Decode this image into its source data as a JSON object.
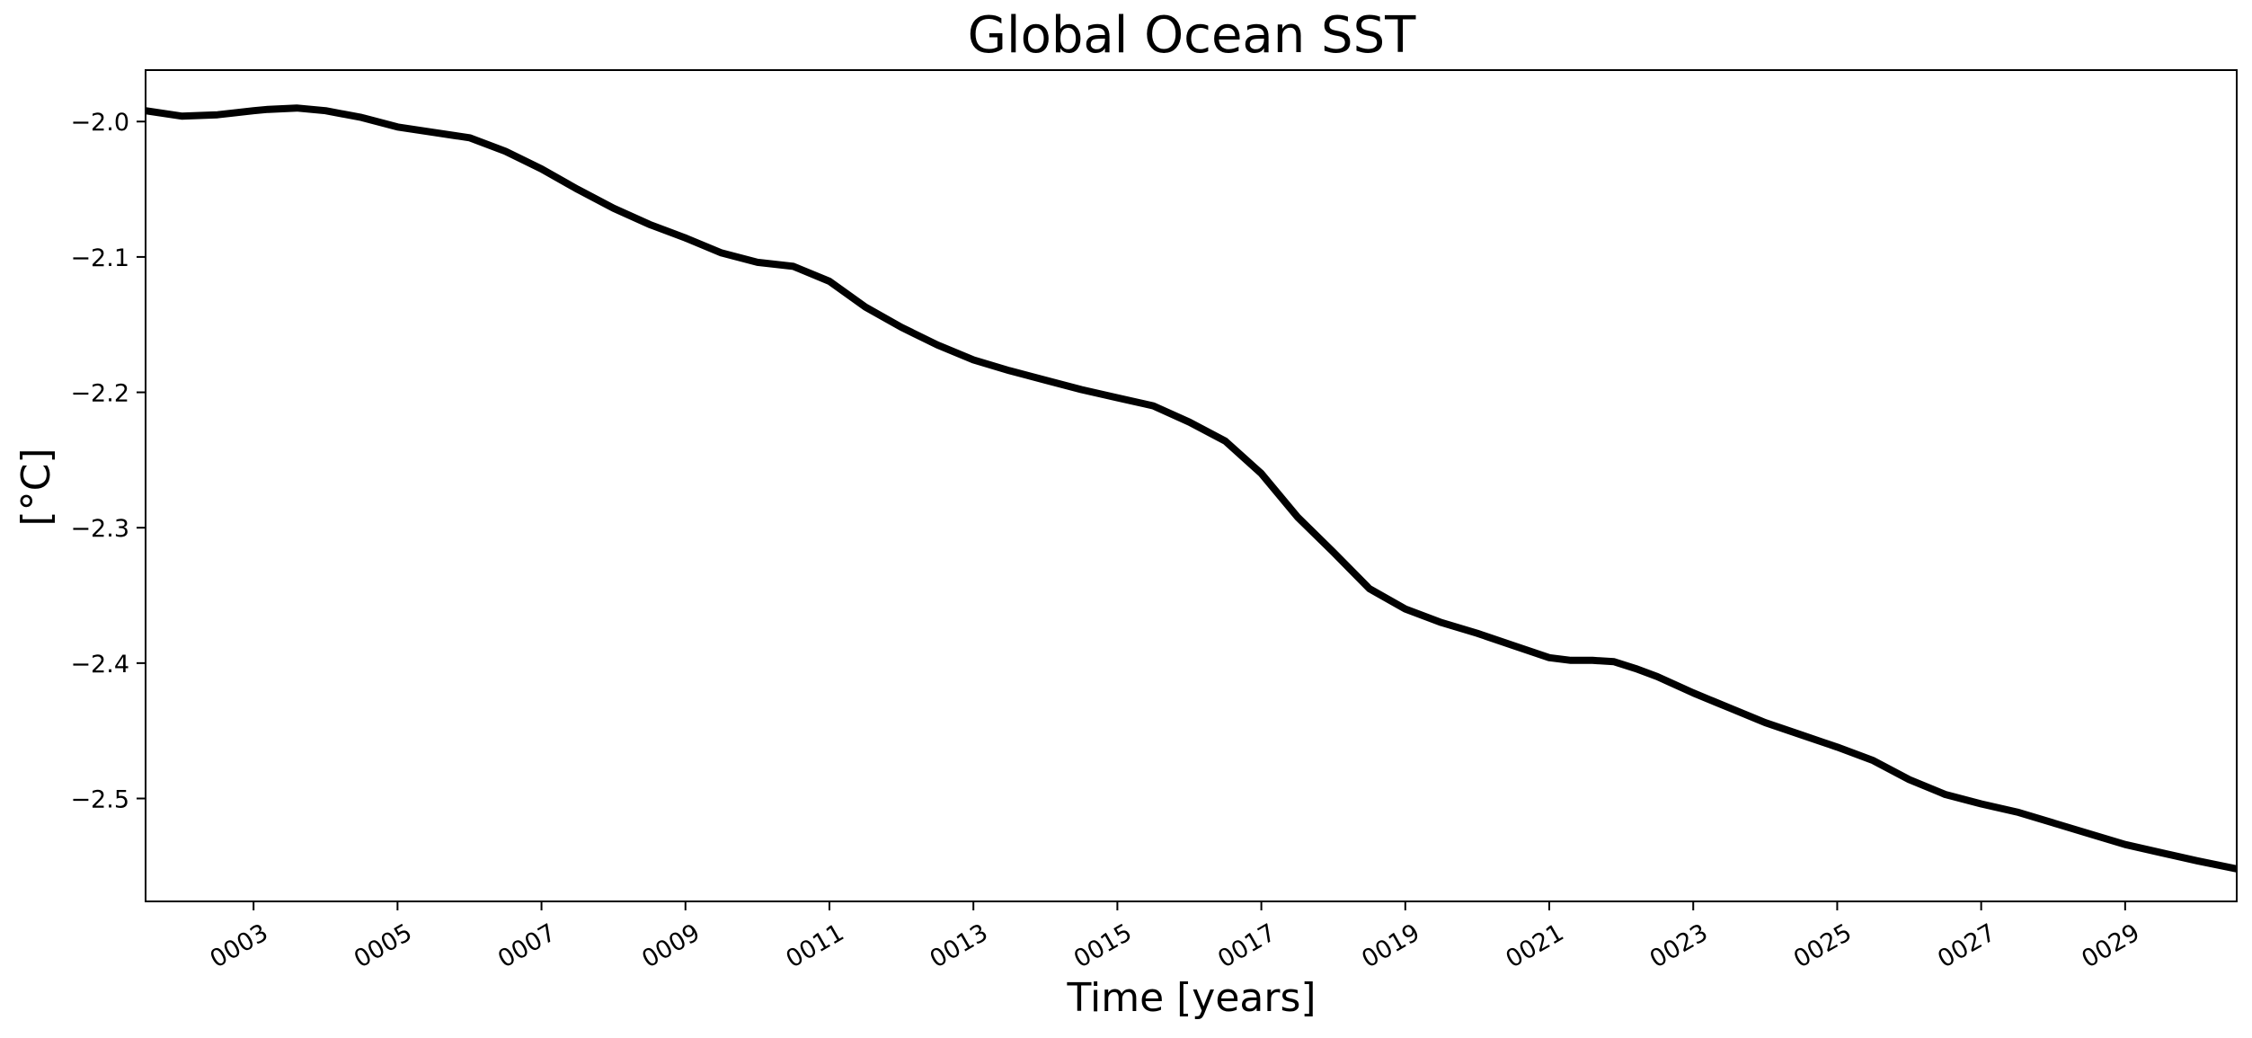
{
  "chart_data": {
    "type": "line",
    "title": "Global Ocean SST",
    "xlabel": "Time [years]",
    "ylabel": "[°C]",
    "xlim": [
      1.5,
      30.55
    ],
    "ylim": [
      -2.576,
      -1.962
    ],
    "x_ticks": [
      {
        "value": 3,
        "label": "0003"
      },
      {
        "value": 5,
        "label": "0005"
      },
      {
        "value": 7,
        "label": "0007"
      },
      {
        "value": 9,
        "label": "0009"
      },
      {
        "value": 11,
        "label": "0011"
      },
      {
        "value": 13,
        "label": "0013"
      },
      {
        "value": 15,
        "label": "0015"
      },
      {
        "value": 17,
        "label": "0017"
      },
      {
        "value": 19,
        "label": "0019"
      },
      {
        "value": 21,
        "label": "0021"
      },
      {
        "value": 23,
        "label": "0023"
      },
      {
        "value": 25,
        "label": "0025"
      },
      {
        "value": 27,
        "label": "0027"
      },
      {
        "value": 29,
        "label": "0029"
      }
    ],
    "y_ticks": [
      {
        "value": -2.0,
        "label": "−2.0"
      },
      {
        "value": -2.1,
        "label": "−2.1"
      },
      {
        "value": -2.2,
        "label": "−2.2"
      },
      {
        "value": -2.3,
        "label": "−2.3"
      },
      {
        "value": -2.4,
        "label": "−2.4"
      },
      {
        "value": -2.5,
        "label": "−2.5"
      }
    ],
    "grid": false,
    "series": [
      {
        "name": "Global Ocean SST",
        "color": "#000000",
        "x": [
          1.5,
          2.0,
          2.5,
          3.0,
          3.2,
          3.6,
          4.0,
          4.5,
          5.0,
          5.5,
          6.0,
          6.5,
          7.0,
          7.5,
          8.0,
          8.5,
          9.0,
          9.5,
          10.0,
          10.5,
          11.0,
          11.5,
          12.0,
          12.5,
          13.0,
          13.5,
          14.0,
          14.5,
          15.0,
          15.5,
          16.0,
          16.5,
          17.0,
          17.5,
          18.0,
          18.5,
          19.0,
          19.5,
          20.0,
          20.5,
          21.0,
          21.3,
          21.6,
          21.9,
          22.2,
          22.5,
          23.0,
          23.5,
          24.0,
          24.5,
          25.0,
          25.5,
          26.0,
          26.5,
          27.0,
          27.5,
          28.0,
          28.5,
          29.0,
          29.5,
          30.0,
          30.55
        ],
        "y": [
          -1.992,
          -1.996,
          -1.995,
          -1.992,
          -1.991,
          -1.99,
          -1.992,
          -1.997,
          -2.004,
          -2.008,
          -2.012,
          -2.022,
          -2.035,
          -2.05,
          -2.064,
          -2.076,
          -2.086,
          -2.097,
          -2.104,
          -2.107,
          -2.118,
          -2.137,
          -2.152,
          -2.165,
          -2.176,
          -2.184,
          -2.191,
          -2.198,
          -2.204,
          -2.21,
          -2.222,
          -2.236,
          -2.26,
          -2.292,
          -2.318,
          -2.345,
          -2.36,
          -2.37,
          -2.378,
          -2.387,
          -2.396,
          -2.398,
          -2.398,
          -2.399,
          -2.404,
          -2.41,
          -2.422,
          -2.433,
          -2.444,
          -2.453,
          -2.462,
          -2.472,
          -2.486,
          -2.497,
          -2.504,
          -2.51,
          -2.518,
          -2.526,
          -2.534,
          -2.54,
          -2.546,
          -2.552
        ]
      }
    ]
  }
}
